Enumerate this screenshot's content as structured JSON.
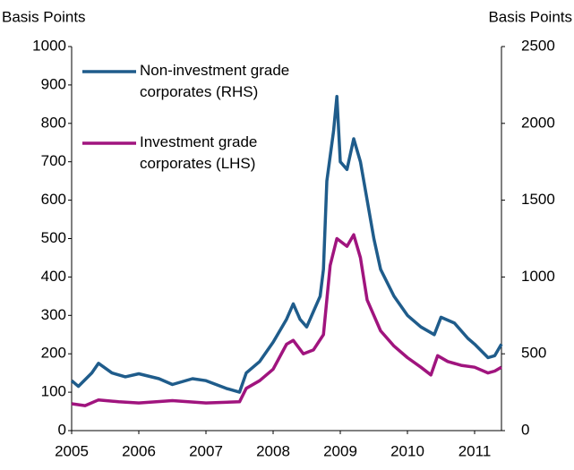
{
  "chart_data": {
    "type": "line",
    "y_label": "Basis Points",
    "y2_label": "Basis Points",
    "xlim": [
      2005,
      2011.4
    ],
    "xticks": [
      2005,
      2006,
      2007,
      2008,
      2009,
      2010,
      2011
    ],
    "ylim": [
      0,
      1000
    ],
    "yticks": [
      0,
      100,
      200,
      300,
      400,
      500,
      600,
      700,
      800,
      900,
      1000
    ],
    "y2lim": [
      0,
      2500
    ],
    "y2ticks": [
      0,
      500,
      1000,
      1500,
      2000,
      2500
    ],
    "grid": false,
    "series": [
      {
        "name": "Non-investment grade corporates (RHS)",
        "color": "#1f5c8b",
        "axis": "y2",
        "x": [
          2005.0,
          2005.1,
          2005.3,
          2005.4,
          2005.6,
          2005.8,
          2006.0,
          2006.3,
          2006.5,
          2006.8,
          2007.0,
          2007.3,
          2007.5,
          2007.6,
          2007.8,
          2008.0,
          2008.2,
          2008.3,
          2008.4,
          2008.5,
          2008.6,
          2008.7,
          2008.75,
          2008.8,
          2008.9,
          2008.95,
          2009.0,
          2009.1,
          2009.2,
          2009.3,
          2009.4,
          2009.5,
          2009.6,
          2009.8,
          2010.0,
          2010.2,
          2010.4,
          2010.5,
          2010.7,
          2010.9,
          2011.0,
          2011.2,
          2011.3,
          2011.4
        ],
        "values": [
          325,
          288,
          375,
          438,
          375,
          350,
          370,
          338,
          300,
          338,
          325,
          275,
          250,
          375,
          450,
          575,
          725,
          825,
          725,
          675,
          775,
          875,
          1050,
          1625,
          1950,
          2175,
          1750,
          1700,
          1900,
          1750,
          1500,
          1250,
          1050,
          875,
          750,
          675,
          625,
          738,
          700,
          600,
          563,
          475,
          488,
          563
        ]
      },
      {
        "name": "Investment grade corporates (LHS)",
        "color": "#a0147e",
        "axis": "y",
        "x": [
          2005.0,
          2005.2,
          2005.4,
          2005.7,
          2006.0,
          2006.5,
          2007.0,
          2007.5,
          2007.6,
          2007.8,
          2008.0,
          2008.2,
          2008.3,
          2008.45,
          2008.6,
          2008.75,
          2008.85,
          2008.95,
          2009.1,
          2009.2,
          2009.3,
          2009.4,
          2009.6,
          2009.8,
          2010.0,
          2010.2,
          2010.35,
          2010.45,
          2010.6,
          2010.8,
          2011.0,
          2011.2,
          2011.3,
          2011.4
        ],
        "values": [
          70,
          65,
          80,
          75,
          72,
          78,
          72,
          75,
          110,
          130,
          160,
          225,
          235,
          200,
          210,
          250,
          430,
          500,
          480,
          510,
          450,
          340,
          260,
          220,
          190,
          165,
          145,
          195,
          180,
          170,
          165,
          150,
          155,
          165
        ]
      }
    ]
  }
}
